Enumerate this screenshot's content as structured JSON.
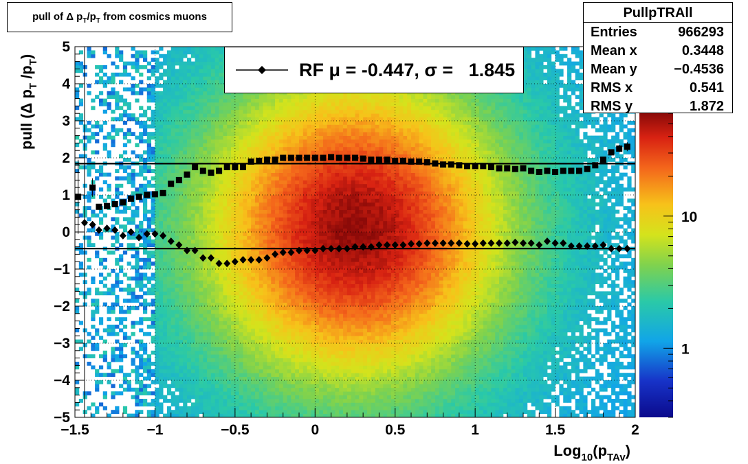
{
  "title": "pull of Δ pₜ/pₜ from cosmics muons",
  "title_parts": {
    "pre": "pull of Δ p",
    "sub1": "T",
    "mid": "/p",
    "sub2": "T",
    "post": " from cosmics muons"
  },
  "stats": {
    "name": "PullpTRAll",
    "rows": [
      {
        "label": "Entries",
        "value": "966293"
      },
      {
        "label": "Mean x",
        "value": "0.3448"
      },
      {
        "label": "Mean y",
        "value": "−0.4536"
      },
      {
        "label": "RMS x",
        "value": "0.541"
      },
      {
        "label": "RMS y",
        "value": "1.872"
      }
    ]
  },
  "legend": {
    "text": "RF μ = -0.447, σ =   1.845"
  },
  "colors": {
    "frame": "#000000",
    "markers": "#000000",
    "palette": "rainbow"
  },
  "chart_data": {
    "type": "heatmap",
    "title": "pull of Δ p_T/p_T from cosmics muons",
    "xlabel": "Log10(pTAv)",
    "xlabel_parts": {
      "pre": "Log",
      "sub1": "10",
      "mid": "(p",
      "sub2": "TAv",
      "post": ")"
    },
    "ylabel": "pull (Δ p_T /p_T)",
    "ylabel_parts": {
      "pre": "pull (Δ p",
      "sub1": "T",
      "mid": " /p",
      "sub2": "T",
      "post": ")"
    },
    "xlim": [
      -1.5,
      2
    ],
    "ylim": [
      -5,
      5
    ],
    "xticks": [
      -1.5,
      -1,
      -0.5,
      0,
      0.5,
      1,
      1.5,
      2
    ],
    "xtick_labels": [
      "−1.5",
      "−1",
      "−0.5",
      "0",
      "0.5",
      "1",
      "1.5",
      "2"
    ],
    "yticks": [
      -5,
      -4,
      -3,
      -2,
      -1,
      0,
      1,
      2,
      3,
      4,
      5
    ],
    "ytick_labels": [
      "−5",
      "−4",
      "−3",
      "−2",
      "−1",
      "0",
      "1",
      "2",
      "3",
      "4",
      "5"
    ],
    "grid": true,
    "colorbar": {
      "scale": "log",
      "tick_labels": [
        "1",
        "10"
      ],
      "tick_values": [
        1,
        10
      ],
      "range": [
        0.3,
        60
      ]
    },
    "density_peak": {
      "x": 0.3448,
      "y": -0.4536,
      "rms_x": 0.541,
      "rms_y": 1.872
    },
    "series": [
      {
        "marker": "square",
        "x": [
          -1.48,
          -1.39,
          -1.35,
          -1.3,
          -1.25,
          -1.2,
          -1.15,
          -1.1,
          -1.05,
          -1.0,
          -0.95,
          -0.9,
          -0.85,
          -0.8,
          -0.75,
          -0.7,
          -0.65,
          -0.6,
          -0.55,
          -0.5,
          -0.45,
          -0.4,
          -0.35,
          -0.3,
          -0.25,
          -0.2,
          -0.15,
          -0.1,
          -0.05,
          0.0,
          0.05,
          0.1,
          0.15,
          0.2,
          0.25,
          0.3,
          0.35,
          0.4,
          0.45,
          0.5,
          0.55,
          0.6,
          0.65,
          0.7,
          0.75,
          0.8,
          0.85,
          0.9,
          0.95,
          1.0,
          1.05,
          1.1,
          1.15,
          1.2,
          1.25,
          1.3,
          1.35,
          1.4,
          1.45,
          1.5,
          1.55,
          1.6,
          1.65,
          1.7,
          1.75,
          1.8,
          1.85,
          1.9,
          1.95
        ],
        "y": [
          0.95,
          1.2,
          0.68,
          0.7,
          0.75,
          0.8,
          0.9,
          0.95,
          1.0,
          1.02,
          1.05,
          1.3,
          1.4,
          1.55,
          1.75,
          1.65,
          1.6,
          1.65,
          1.75,
          1.75,
          1.75,
          1.9,
          1.92,
          1.95,
          1.95,
          2.0,
          2.0,
          2.0,
          2.0,
          2.0,
          2.0,
          2.02,
          2.0,
          2.0,
          2.0,
          1.98,
          1.95,
          1.95,
          1.95,
          1.92,
          1.92,
          1.9,
          1.9,
          1.88,
          1.85,
          1.82,
          1.82,
          1.8,
          1.78,
          1.78,
          1.78,
          1.75,
          1.72,
          1.72,
          1.7,
          1.72,
          1.65,
          1.62,
          1.65,
          1.62,
          1.65,
          1.65,
          1.65,
          1.7,
          1.8,
          1.95,
          2.15,
          2.25,
          2.3
        ],
        "errors": [
          1.0,
          0.25,
          0.06,
          0.06,
          0.05,
          0.05,
          0.05,
          0.05,
          0.05,
          0.04,
          0.04,
          0.04,
          0.04,
          0.04,
          0.04,
          0.04,
          0.03,
          0.03,
          0.03,
          0.03,
          0.03,
          0.03,
          0.03,
          0.03,
          0.03,
          0.03,
          0.03,
          0.03,
          0.03,
          0.03,
          0.03,
          0.03,
          0.03,
          0.03,
          0.03,
          0.03,
          0.03,
          0.03,
          0.03,
          0.03,
          0.03,
          0.03,
          0.03,
          0.03,
          0.03,
          0.03,
          0.03,
          0.03,
          0.03,
          0.03,
          0.03,
          0.03,
          0.03,
          0.03,
          0.03,
          0.03,
          0.03,
          0.03,
          0.03,
          0.03,
          0.03,
          0.03,
          0.03,
          0.04,
          0.05,
          0.06,
          0.08,
          0.1,
          0.12
        ]
      },
      {
        "marker": "diamond",
        "x": [
          -1.44,
          -1.39,
          -1.35,
          -1.3,
          -1.25,
          -1.2,
          -1.15,
          -1.1,
          -1.05,
          -1.0,
          -0.95,
          -0.9,
          -0.85,
          -0.8,
          -0.75,
          -0.7,
          -0.65,
          -0.6,
          -0.55,
          -0.5,
          -0.45,
          -0.4,
          -0.35,
          -0.3,
          -0.25,
          -0.2,
          -0.15,
          -0.1,
          -0.05,
          0.0,
          0.05,
          0.1,
          0.15,
          0.2,
          0.25,
          0.3,
          0.35,
          0.4,
          0.45,
          0.5,
          0.55,
          0.6,
          0.65,
          0.7,
          0.75,
          0.8,
          0.85,
          0.9,
          0.95,
          1.0,
          1.05,
          1.1,
          1.15,
          1.2,
          1.25,
          1.3,
          1.35,
          1.4,
          1.45,
          1.5,
          1.55,
          1.6,
          1.65,
          1.7,
          1.75,
          1.8,
          1.85,
          1.9,
          1.95
        ],
        "y": [
          0.25,
          0.2,
          0.05,
          0.1,
          0.05,
          -0.1,
          0.0,
          -0.15,
          -0.05,
          -0.05,
          -0.1,
          -0.25,
          -0.35,
          -0.5,
          -0.5,
          -0.7,
          -0.7,
          -0.85,
          -0.85,
          -0.8,
          -0.75,
          -0.75,
          -0.75,
          -0.7,
          -0.6,
          -0.55,
          -0.55,
          -0.5,
          -0.5,
          -0.5,
          -0.45,
          -0.45,
          -0.45,
          -0.45,
          -0.4,
          -0.4,
          -0.4,
          -0.35,
          -0.35,
          -0.35,
          -0.35,
          -0.32,
          -0.32,
          -0.3,
          -0.3,
          -0.3,
          -0.3,
          -0.3,
          -0.32,
          -0.32,
          -0.3,
          -0.3,
          -0.3,
          -0.3,
          -0.28,
          -0.3,
          -0.3,
          -0.35,
          -0.25,
          -0.3,
          -0.3,
          -0.38,
          -0.38,
          -0.38,
          -0.38,
          -0.35,
          -0.45,
          -0.45,
          -0.45
        ],
        "errors": [
          0.08,
          0.06,
          0.05,
          0.05,
          0.04,
          0.04,
          0.04,
          0.04,
          0.04,
          0.03,
          0.03,
          0.03,
          0.03,
          0.03,
          0.03,
          0.03,
          0.03,
          0.03,
          0.03,
          0.03,
          0.03,
          0.03,
          0.03,
          0.03,
          0.03,
          0.03,
          0.03,
          0.03,
          0.03,
          0.03,
          0.03,
          0.03,
          0.03,
          0.03,
          0.03,
          0.03,
          0.03,
          0.03,
          0.03,
          0.03,
          0.03,
          0.03,
          0.03,
          0.03,
          0.03,
          0.03,
          0.03,
          0.03,
          0.03,
          0.03,
          0.03,
          0.03,
          0.03,
          0.03,
          0.03,
          0.03,
          0.03,
          0.03,
          0.03,
          0.03,
          0.03,
          0.03,
          0.03,
          0.03,
          0.04,
          0.05,
          0.06,
          0.07,
          0.08
        ]
      }
    ],
    "reference_lines": [
      {
        "y": -0.447
      },
      {
        "y": 1.845
      }
    ]
  }
}
